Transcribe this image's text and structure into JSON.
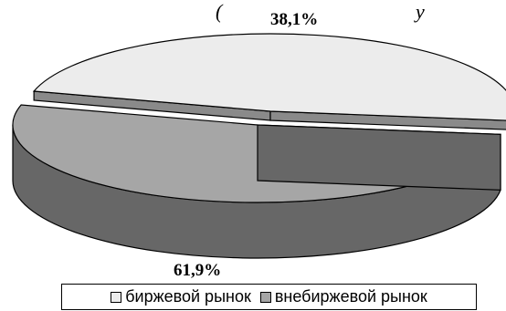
{
  "header_fragment": "(",
  "header_fragment_tail": "у",
  "chart_data": {
    "type": "pie",
    "style": "3d-exploded",
    "categories": [
      "биржевой рынок",
      "внебиржевой рынок"
    ],
    "values": [
      38.1,
      61.9
    ],
    "data_labels": [
      "38,1%",
      "61,9%"
    ],
    "colors": {
      "exchange_top": "#ececec",
      "otc_top": "#a6a6a6",
      "otc_side": "#676767",
      "exchange_side": "#8a8a8a",
      "outline": "#000000"
    },
    "legend": {
      "position": "bottom",
      "items": [
        {
          "label": "биржевой рынок",
          "color": "#ececec"
        },
        {
          "label": "внебиржевой рынок",
          "color": "#a6a6a6"
        }
      ]
    }
  }
}
